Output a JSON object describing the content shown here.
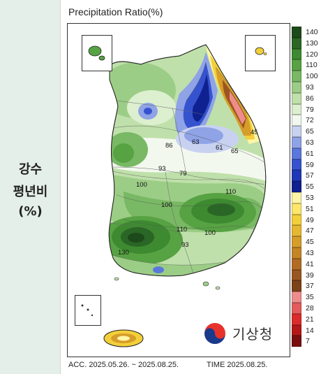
{
  "side_panel": {
    "line1": "강수",
    "line2": "평년비",
    "line3": "(%)"
  },
  "map": {
    "title": "Precipitation Ratio(%)",
    "footer_acc": "ACC. 2025.05.26. ~ 2025.08.25.",
    "footer_time": "TIME 2025.08.25.",
    "agency": "기상청",
    "contour_labels": [
      "45",
      "86",
      "63",
      "61",
      "65",
      "93",
      "79",
      "100",
      "110",
      "100",
      "110",
      "100",
      "130",
      "93"
    ]
  },
  "legend": [
    {
      "label": "140",
      "color": "#1d4a1a"
    },
    {
      "label": "130",
      "color": "#2a6625"
    },
    {
      "label": "120",
      "color": "#3d8a30"
    },
    {
      "label": "110",
      "color": "#57a243"
    },
    {
      "label": "100",
      "color": "#79b864"
    },
    {
      "label": "93",
      "color": "#9ccd86"
    },
    {
      "label": "86",
      "color": "#bfe0aa"
    },
    {
      "label": "79",
      "color": "#dcefce"
    },
    {
      "label": "72",
      "color": "#f3f8ef"
    },
    {
      "label": "65",
      "color": "#c8d2f0"
    },
    {
      "label": "63",
      "color": "#8fa3e6"
    },
    {
      "label": "61",
      "color": "#5a77dc"
    },
    {
      "label": "59",
      "color": "#3653cf"
    },
    {
      "label": "57",
      "color": "#1f38b8"
    },
    {
      "label": "55",
      "color": "#0f2190"
    },
    {
      "label": "53",
      "color": "#fff5a6"
    },
    {
      "label": "51",
      "color": "#fde66a"
    },
    {
      "label": "49",
      "color": "#f3cf3a"
    },
    {
      "label": "47",
      "color": "#e6b730"
    },
    {
      "label": "45",
      "color": "#d69d2a"
    },
    {
      "label": "43",
      "color": "#c58426"
    },
    {
      "label": "41",
      "color": "#b26c22"
    },
    {
      "label": "39",
      "color": "#9a5620"
    },
    {
      "label": "37",
      "color": "#7e4219"
    },
    {
      "label": "35",
      "color": "#ee8c8c"
    },
    {
      "label": "28",
      "color": "#e55a5a"
    },
    {
      "label": "21",
      "color": "#dd2a2a"
    },
    {
      "label": "14",
      "color": "#b51717"
    },
    {
      "label": "7",
      "color": "#7a0e0e"
    }
  ]
}
